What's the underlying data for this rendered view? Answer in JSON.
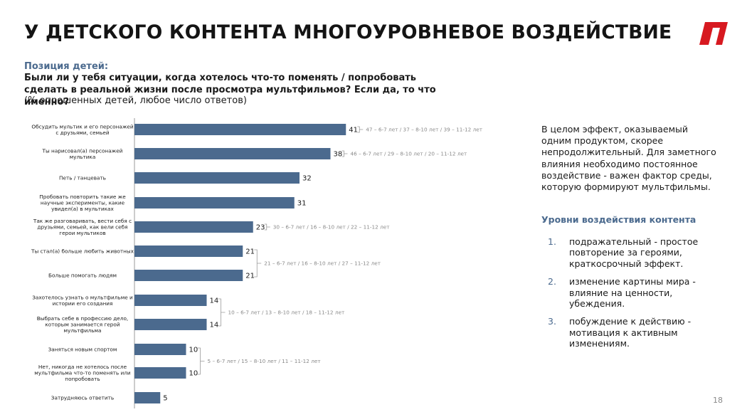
{
  "page": {
    "title": "У ДЕТСКОГО КОНТЕНТА МНОГОУРОВНЕВОЕ ВОЗДЕЙСТВИЕ",
    "page_number": "18",
    "logo_color": "#d71920"
  },
  "question": {
    "heading": "Позиция детей:",
    "text": "Были ли у тебя ситуации, когда хотелось что-то поменять / попробовать сделать в реальной жизни после просмотра мультфильмов? Если да, то что именно?",
    "note": "(% опрошенных детей, любое число ответов)"
  },
  "chart_data": {
    "type": "bar",
    "orientation": "horizontal",
    "bar_color": "#4b6a8e",
    "categories": [
      "Обсудить мультик и его персонажей с друзьями, семьей",
      "Ты нарисовал(а) персонажей мультика",
      "Петь / танцевать",
      "Пробовать повторить такие же научные эксперименты, какие увидел(а) в мультиках",
      "Так же разговаривать, вести себя с друзьями, семьей, как вели себя герои мультиков",
      "Ты стал(а) больше любить животных",
      "Больше помогать людям",
      "Захотелось узнать о мультфильме и истории его создания",
      "Выбрать себе в профессию дело, которым занимается герой мультфильма",
      "Заняться новым спортом",
      "Нет, никогда не хотелось после мультфильма что-то поменять или попробовать",
      "Затрудняюсь ответить"
    ],
    "values": [
      41,
      38,
      32,
      31,
      23,
      21,
      21,
      14,
      14,
      10,
      10,
      5
    ],
    "annotations": [
      {
        "rows": [
          0
        ],
        "text": "47 – 6-7 лет  /  37 – 8-10 лет  /  39 – 11-12 лет"
      },
      {
        "rows": [
          1
        ],
        "text": "46 – 6-7 лет  /  29 – 8-10 лет  /  20 – 11-12 лет"
      },
      {
        "rows": [
          4
        ],
        "text": "30 – 6-7 лет  /  16 – 8-10 лет  /  22 – 11-12 лет"
      },
      {
        "rows": [
          5,
          6
        ],
        "text": "21 – 6-7 лет  /  16 – 8-10 лет  /  27 – 11-12 лет"
      },
      {
        "rows": [
          7,
          8
        ],
        "text": "10 – 6-7 лет  /  13 – 8-10 лет  /  18 – 11-12 лет"
      },
      {
        "rows": [
          9,
          10
        ],
        "text": "5 – 6-7 лет  /  15 – 8-10 лет  /  11 – 11-12 лет"
      }
    ]
  },
  "right_panel": {
    "paragraph": "В целом эффект, оказываемый одним продуктом, скорее непродолжительный. Для заметного влияния необходимо постоянное воздействие - важен фактор среды, которую формируют мультфильмы.",
    "levels_heading": "Уровни воздействия контента",
    "levels": [
      {
        "num": "1.",
        "text": "подражательный - простое повторение за героями, краткосрочный эффект."
      },
      {
        "num": "2.",
        "text": "изменение картины мира - влияние на ценности, убеждения."
      },
      {
        "num": "3.",
        "text": "побуждение к действию - мотивация к активным изменениям."
      }
    ]
  }
}
